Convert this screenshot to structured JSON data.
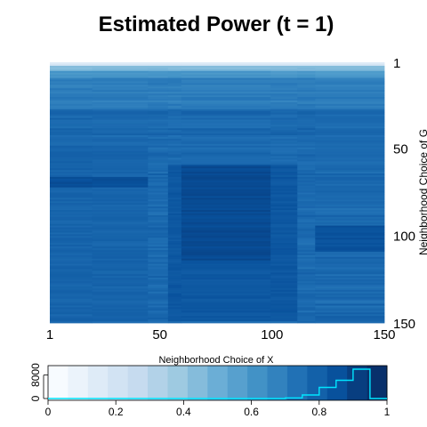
{
  "chart_data": [
    {
      "type": "heatmap",
      "title": "Estimated Power (t = 1)",
      "xlabel": "",
      "ylabel": "Neighborhood Choice of G",
      "xlim": [
        1,
        150
      ],
      "ylim": [
        1,
        150
      ],
      "x_ticks": [
        "1",
        "50",
        "100",
        "150"
      ],
      "y_ticks": [
        "1",
        "50",
        "100",
        "150"
      ],
      "colors": [
        "#f7fbff",
        "#deebf7",
        "#c6dbef",
        "#9ecae1",
        "#6baed6",
        "#4292c6",
        "#2171b5",
        "#08519c",
        "#08306b"
      ],
      "regions": [
        {
          "x": [
            1,
            150
          ],
          "y": [
            1,
            3
          ],
          "level": 0.15
        },
        {
          "x": [
            1,
            150
          ],
          "y": [
            3,
            6
          ],
          "level": 0.45
        },
        {
          "x": [
            1,
            150
          ],
          "y": [
            6,
            10
          ],
          "level": 0.6
        },
        {
          "x": [
            1,
            150
          ],
          "y": [
            10,
            28
          ],
          "level": 0.7
        },
        {
          "x": [
            1,
            150
          ],
          "y": [
            28,
            150
          ],
          "level": 0.78
        },
        {
          "x": [
            1,
            50
          ],
          "y": [
            50,
            150
          ],
          "level": 0.8
        },
        {
          "x": [
            54,
            112
          ],
          "y": [
            60,
            150
          ],
          "level": 0.85
        },
        {
          "x": [
            60,
            100
          ],
          "y": [
            60,
            115
          ],
          "level": 0.9
        },
        {
          "x": [
            1,
            45
          ],
          "y": [
            67,
            73
          ],
          "level": 0.88
        },
        {
          "x": [
            120,
            150
          ],
          "y": [
            95,
            110
          ],
          "level": 0.87
        },
        {
          "x": [
            58,
            98
          ],
          "y": [
            128,
            146
          ],
          "level": 0.93
        }
      ]
    },
    {
      "type": "bar",
      "title": "Neighborhood Choice of X",
      "xlabel": "",
      "ylabel": "",
      "xlim": [
        0,
        1
      ],
      "ylim": [
        0,
        10000
      ],
      "x_ticks": [
        "0",
        "0.2",
        "0.4",
        "0.6",
        "0.8",
        "1"
      ],
      "y_ticks": [
        "0",
        "8000"
      ],
      "bin_edges": [
        0,
        0.05,
        0.1,
        0.15,
        0.2,
        0.25,
        0.3,
        0.35,
        0.4,
        0.45,
        0.5,
        0.55,
        0.6,
        0.65,
        0.7,
        0.75,
        0.8,
        0.85,
        0.9,
        0.95,
        1
      ],
      "counts": [
        0,
        0,
        0,
        0,
        0,
        0,
        0,
        0,
        0,
        0,
        0,
        0,
        0,
        0,
        200,
        1200,
        3800,
        6200,
        10000,
        0
      ],
      "legend_colors": [
        "#f7fbff",
        "#ebf3fb",
        "#deebf7",
        "#d2e3f3",
        "#c6dbef",
        "#b2d2e8",
        "#9ecae1",
        "#85bcdb",
        "#6baed6",
        "#57a0ce",
        "#4292c6",
        "#3282be",
        "#2171b5",
        "#1361a9",
        "#08519c",
        "#083e80",
        "#08306b"
      ],
      "line_color": "#00e5ff"
    }
  ]
}
